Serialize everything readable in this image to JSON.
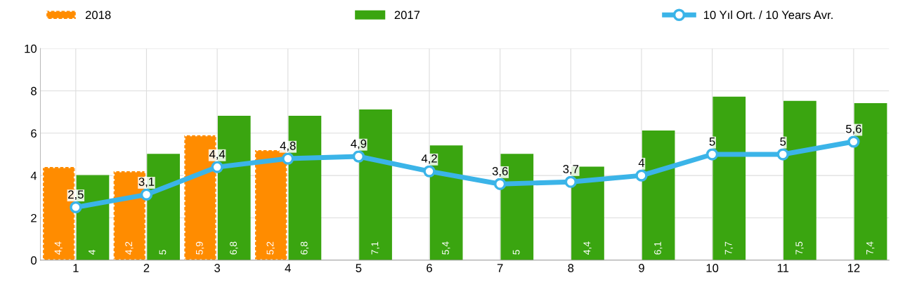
{
  "chart_data": {
    "type": "bar",
    "categories": [
      "1",
      "2",
      "3",
      "4",
      "5",
      "6",
      "7",
      "8",
      "9",
      "10",
      "11",
      "12"
    ],
    "series": [
      {
        "name": "2018",
        "color": "#ff8c00",
        "values": [
          4.4,
          4.2,
          5.9,
          5.2,
          null,
          null,
          null,
          null,
          null,
          null,
          null,
          null
        ],
        "value_labels": [
          "4,4",
          "4,2",
          "5,9",
          "5,2",
          null,
          null,
          null,
          null,
          null,
          null,
          null,
          null
        ]
      },
      {
        "name": "2017",
        "color": "#3aa510",
        "values": [
          4,
          5,
          6.8,
          6.8,
          7.1,
          5.4,
          5,
          4.4,
          6.1,
          7.7,
          7.5,
          7.4
        ],
        "value_labels": [
          "4",
          "5",
          "6,8",
          "6,8",
          "7,1",
          "5,4",
          "5",
          "4,4",
          "6,1",
          "7,7",
          "7,5",
          "7,4"
        ]
      },
      {
        "name": "10 Yıl Ort. / 10 Years Avr.",
        "type": "line",
        "color": "#3bb4e8",
        "marker": "circle",
        "values": [
          2.5,
          3.1,
          4.4,
          4.8,
          4.9,
          4.2,
          3.6,
          3.7,
          4,
          5,
          5,
          5.6
        ],
        "value_labels": [
          "2,5",
          "3,1",
          "4,4",
          "4,8",
          "4,9",
          "4,2",
          "3,6",
          "3,7",
          "4",
          "5",
          "5",
          "5,6"
        ]
      }
    ],
    "ylim": [
      0,
      10
    ],
    "yticks": [
      0,
      2,
      4,
      6,
      8,
      10
    ],
    "grid": true,
    "legend": "top"
  }
}
